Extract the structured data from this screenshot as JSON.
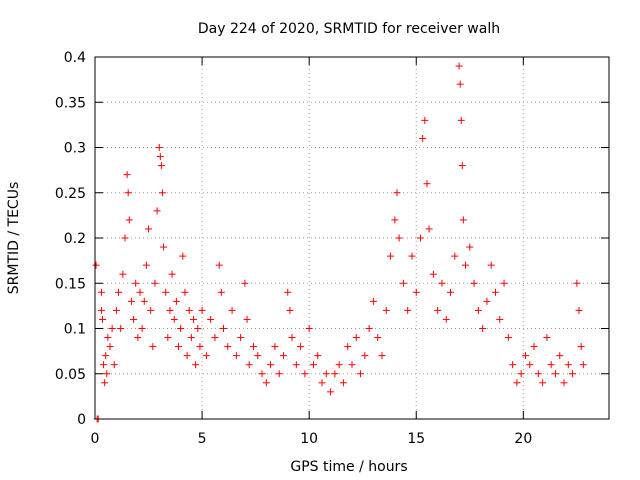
{
  "chart_data": {
    "type": "scatter",
    "title": "Day 224 of 2020, SRMTID for receiver walh",
    "xlabel": "GPS time / hours",
    "ylabel": "SRMTID / TECUs",
    "xlim": [
      0,
      24
    ],
    "ylim": [
      0,
      0.4
    ],
    "x_ticks": [
      0,
      5,
      10,
      15,
      20
    ],
    "x_tick_labels": [
      "0",
      "5",
      "10",
      "15",
      "20"
    ],
    "y_ticks": [
      0,
      0.05,
      0.1,
      0.15,
      0.2,
      0.25,
      0.3,
      0.35,
      0.4
    ],
    "y_tick_labels": [
      "0",
      "0.05",
      "0.1",
      "0.15",
      "0.2",
      "0.25",
      "0.3",
      "0.35",
      "0.4"
    ],
    "grid": true,
    "marker": "+",
    "color": "#ff0000",
    "series": [
      {
        "name": "SRMTID",
        "points": [
          [
            0.05,
            0.17
          ],
          [
            0.1,
            0.0
          ],
          [
            0.15,
            0.0
          ],
          [
            0.3,
            0.14
          ],
          [
            0.3,
            0.12
          ],
          [
            0.35,
            0.11
          ],
          [
            0.4,
            0.06
          ],
          [
            0.45,
            0.04
          ],
          [
            0.5,
            0.07
          ],
          [
            0.55,
            0.05
          ],
          [
            0.6,
            0.09
          ],
          [
            0.7,
            0.08
          ],
          [
            0.8,
            0.1
          ],
          [
            0.9,
            0.06
          ],
          [
            1.0,
            0.12
          ],
          [
            1.1,
            0.14
          ],
          [
            1.2,
            0.1
          ],
          [
            1.3,
            0.16
          ],
          [
            1.4,
            0.2
          ],
          [
            1.5,
            0.27
          ],
          [
            1.55,
            0.25
          ],
          [
            1.6,
            0.22
          ],
          [
            1.7,
            0.13
          ],
          [
            1.8,
            0.11
          ],
          [
            1.9,
            0.15
          ],
          [
            2.0,
            0.09
          ],
          [
            2.1,
            0.14
          ],
          [
            2.2,
            0.1
          ],
          [
            2.3,
            0.13
          ],
          [
            2.4,
            0.17
          ],
          [
            2.5,
            0.21
          ],
          [
            2.6,
            0.12
          ],
          [
            2.7,
            0.08
          ],
          [
            2.8,
            0.15
          ],
          [
            2.9,
            0.23
          ],
          [
            3.0,
            0.3
          ],
          [
            3.05,
            0.29
          ],
          [
            3.1,
            0.28
          ],
          [
            3.15,
            0.25
          ],
          [
            3.2,
            0.19
          ],
          [
            3.3,
            0.14
          ],
          [
            3.4,
            0.09
          ],
          [
            3.5,
            0.12
          ],
          [
            3.6,
            0.16
          ],
          [
            3.7,
            0.11
          ],
          [
            3.8,
            0.13
          ],
          [
            3.9,
            0.08
          ],
          [
            4.0,
            0.1
          ],
          [
            4.1,
            0.18
          ],
          [
            4.2,
            0.14
          ],
          [
            4.3,
            0.07
          ],
          [
            4.4,
            0.12
          ],
          [
            4.5,
            0.09
          ],
          [
            4.6,
            0.11
          ],
          [
            4.7,
            0.06
          ],
          [
            4.8,
            0.1
          ],
          [
            4.9,
            0.08
          ],
          [
            5.0,
            0.12
          ],
          [
            5.2,
            0.07
          ],
          [
            5.4,
            0.11
          ],
          [
            5.6,
            0.09
          ],
          [
            5.8,
            0.17
          ],
          [
            5.9,
            0.14
          ],
          [
            6.0,
            0.1
          ],
          [
            6.2,
            0.08
          ],
          [
            6.4,
            0.12
          ],
          [
            6.6,
            0.07
          ],
          [
            6.8,
            0.09
          ],
          [
            7.0,
            0.15
          ],
          [
            7.1,
            0.11
          ],
          [
            7.2,
            0.06
          ],
          [
            7.4,
            0.08
          ],
          [
            7.6,
            0.07
          ],
          [
            7.8,
            0.05
          ],
          [
            8.0,
            0.04
          ],
          [
            8.2,
            0.06
          ],
          [
            8.4,
            0.08
          ],
          [
            8.6,
            0.05
          ],
          [
            8.8,
            0.07
          ],
          [
            9.0,
            0.14
          ],
          [
            9.1,
            0.12
          ],
          [
            9.2,
            0.09
          ],
          [
            9.4,
            0.06
          ],
          [
            9.6,
            0.08
          ],
          [
            9.8,
            0.05
          ],
          [
            10.0,
            0.1
          ],
          [
            10.2,
            0.06
          ],
          [
            10.4,
            0.07
          ],
          [
            10.6,
            0.04
          ],
          [
            10.8,
            0.05
          ],
          [
            11.0,
            0.03
          ],
          [
            11.2,
            0.05
          ],
          [
            11.4,
            0.06
          ],
          [
            11.6,
            0.04
          ],
          [
            11.8,
            0.08
          ],
          [
            12.0,
            0.06
          ],
          [
            12.2,
            0.09
          ],
          [
            12.4,
            0.05
          ],
          [
            12.6,
            0.07
          ],
          [
            12.8,
            0.1
          ],
          [
            13.0,
            0.13
          ],
          [
            13.2,
            0.09
          ],
          [
            13.4,
            0.07
          ],
          [
            13.6,
            0.12
          ],
          [
            13.8,
            0.18
          ],
          [
            14.0,
            0.22
          ],
          [
            14.1,
            0.25
          ],
          [
            14.2,
            0.2
          ],
          [
            14.4,
            0.15
          ],
          [
            14.6,
            0.12
          ],
          [
            14.8,
            0.18
          ],
          [
            15.0,
            0.14
          ],
          [
            15.2,
            0.2
          ],
          [
            15.3,
            0.31
          ],
          [
            15.4,
            0.33
          ],
          [
            15.5,
            0.26
          ],
          [
            15.6,
            0.21
          ],
          [
            15.8,
            0.16
          ],
          [
            16.0,
            0.12
          ],
          [
            16.2,
            0.15
          ],
          [
            16.4,
            0.11
          ],
          [
            16.6,
            0.14
          ],
          [
            16.8,
            0.18
          ],
          [
            17.0,
            0.39
          ],
          [
            17.05,
            0.37
          ],
          [
            17.1,
            0.33
          ],
          [
            17.15,
            0.28
          ],
          [
            17.2,
            0.22
          ],
          [
            17.3,
            0.17
          ],
          [
            17.5,
            0.19
          ],
          [
            17.7,
            0.15
          ],
          [
            17.9,
            0.12
          ],
          [
            18.1,
            0.1
          ],
          [
            18.3,
            0.13
          ],
          [
            18.5,
            0.17
          ],
          [
            18.7,
            0.14
          ],
          [
            18.9,
            0.11
          ],
          [
            19.1,
            0.15
          ],
          [
            19.3,
            0.09
          ],
          [
            19.5,
            0.06
          ],
          [
            19.7,
            0.04
          ],
          [
            19.9,
            0.05
          ],
          [
            20.1,
            0.07
          ],
          [
            20.3,
            0.06
          ],
          [
            20.5,
            0.08
          ],
          [
            20.7,
            0.05
          ],
          [
            20.9,
            0.04
          ],
          [
            21.1,
            0.09
          ],
          [
            21.3,
            0.06
          ],
          [
            21.5,
            0.05
          ],
          [
            21.7,
            0.07
          ],
          [
            21.9,
            0.04
          ],
          [
            22.1,
            0.06
          ],
          [
            22.3,
            0.05
          ],
          [
            22.5,
            0.15
          ],
          [
            22.6,
            0.12
          ],
          [
            22.7,
            0.08
          ],
          [
            22.8,
            0.06
          ]
        ]
      }
    ]
  }
}
